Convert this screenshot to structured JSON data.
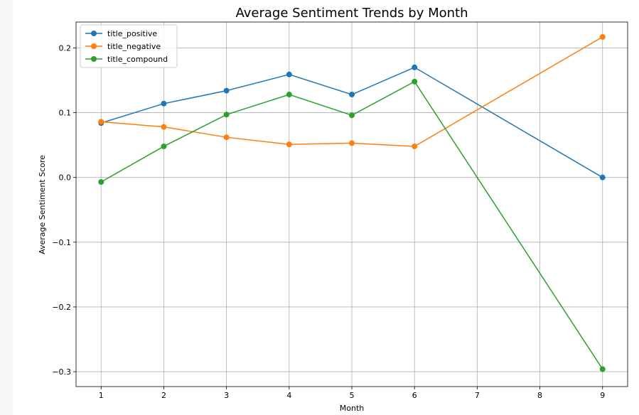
{
  "chart_data": {
    "type": "line",
    "title": "Average Sentiment Trends by Month",
    "xlabel": "Month",
    "ylabel": "Average Sentiment Score",
    "xlim": [
      0.6,
      9.4
    ],
    "ylim": [
      -0.323,
      0.24
    ],
    "xticks": [
      1,
      2,
      3,
      4,
      5,
      6,
      7,
      8,
      9
    ],
    "yticks": [
      -0.3,
      -0.2,
      -0.1,
      0.0,
      0.1,
      0.2
    ],
    "ytick_labels": [
      "−0.3",
      "−0.2",
      "−0.1",
      "0.0",
      "0.1",
      "0.2"
    ],
    "grid": true,
    "legend_position": "top-left",
    "x": [
      1,
      2,
      3,
      4,
      5,
      6,
      9
    ],
    "series": [
      {
        "name": "title_positive",
        "color": "#1f77b4",
        "values": [
          0.084,
          0.114,
          0.134,
          0.159,
          0.128,
          0.17,
          0.0
        ]
      },
      {
        "name": "title_negative",
        "color": "#ff7f0e",
        "values": [
          0.086,
          0.078,
          0.062,
          0.051,
          0.053,
          0.048,
          0.217
        ]
      },
      {
        "name": "title_compound",
        "color": "#2ca02c",
        "values": [
          -0.007,
          0.048,
          0.097,
          0.128,
          0.096,
          0.148,
          -0.296
        ]
      }
    ]
  }
}
